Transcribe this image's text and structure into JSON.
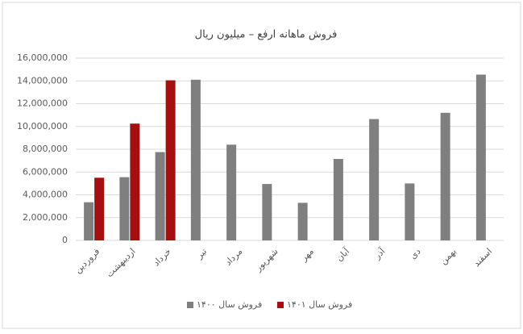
{
  "chart_data": {
    "type": "bar",
    "title": "فروش ماهانه ارفع – میلیون ریال",
    "categories": [
      "فروردین",
      "اردیبهشت",
      "خرداد",
      "تیر",
      "مرداد",
      "شهریور",
      "مهر",
      "آبان",
      "آذر",
      "دی",
      "بهمن",
      "اسفند"
    ],
    "series": [
      {
        "name": "فروش سال ۱۴۰۰",
        "color": "#7f7f7f",
        "values": [
          3350000,
          5550000,
          7750000,
          14100000,
          8400000,
          4950000,
          3300000,
          7150000,
          10650000,
          5000000,
          11200000,
          14550000
        ]
      },
      {
        "name": "فروش سال ۱۴۰۱",
        "color": "#a50f0f",
        "values": [
          5500000,
          10250000,
          14050000,
          null,
          null,
          null,
          null,
          null,
          null,
          null,
          null,
          null
        ]
      }
    ],
    "ylim": [
      0,
      16000000
    ],
    "yticks": [
      0,
      {
        "value": 2000000,
        "label": "2,000,000"
      },
      {
        "value": 4000000,
        "label": "4,000,000"
      },
      {
        "value": 6000000,
        "label": "6,000,000"
      },
      {
        "value": 8000000,
        "label": "8,000,000"
      },
      {
        "value": 10000000,
        "label": "10,000,000"
      },
      {
        "value": 12000000,
        "label": "12,000,000"
      },
      {
        "value": 14000000,
        "label": "14,000,000"
      },
      {
        "value": 16000000,
        "label": "16,000,000"
      }
    ],
    "grid": true,
    "legend": "bottom"
  }
}
